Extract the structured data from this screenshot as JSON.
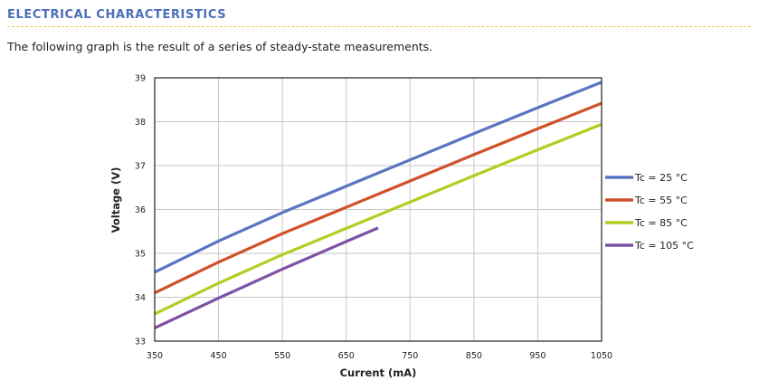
{
  "section": {
    "title": "ELECTRICAL CHARACTERISTICS",
    "intro": "The following graph is the result of a series of steady-state measurements."
  },
  "colors": {
    "title": "#4b6fb8",
    "rule": "#f0c64a",
    "grid": "#c8c8c8",
    "frame": "#222222"
  },
  "chart_data": {
    "type": "line",
    "xlabel": "Current (mA)",
    "ylabel": "Voltage (V)",
    "xlim": [
      350,
      1050
    ],
    "ylim": [
      33,
      39
    ],
    "xticks": [
      350,
      450,
      550,
      650,
      750,
      850,
      950,
      1050
    ],
    "yticks": [
      33,
      34,
      35,
      36,
      37,
      38,
      39
    ],
    "grid": true,
    "legend_position": "right",
    "series": [
      {
        "name": "Tc = 25 °C",
        "color": "#5b74c0",
        "points": [
          [
            350,
            34.57
          ],
          [
            450,
            35.28
          ],
          [
            550,
            35.93
          ],
          [
            650,
            36.53
          ],
          [
            750,
            37.13
          ],
          [
            850,
            37.73
          ],
          [
            950,
            38.32
          ],
          [
            1050,
            38.9
          ]
        ]
      },
      {
        "name": "Tc = 55 °C",
        "color": "#d0502a",
        "points": [
          [
            350,
            34.1
          ],
          [
            450,
            34.8
          ],
          [
            550,
            35.45
          ],
          [
            650,
            36.05
          ],
          [
            750,
            36.65
          ],
          [
            850,
            37.25
          ],
          [
            950,
            37.84
          ],
          [
            1050,
            38.42
          ]
        ]
      },
      {
        "name": "Tc = 85 °C",
        "color": "#b5cc22",
        "points": [
          [
            350,
            33.62
          ],
          [
            450,
            34.32
          ],
          [
            550,
            34.97
          ],
          [
            650,
            35.57
          ],
          [
            750,
            36.17
          ],
          [
            850,
            36.77
          ],
          [
            950,
            37.36
          ],
          [
            1050,
            37.94
          ]
        ]
      },
      {
        "name": "Tc = 105 °C",
        "color": "#7b52a3",
        "points": [
          [
            350,
            33.3
          ],
          [
            450,
            33.98
          ],
          [
            550,
            34.64
          ],
          [
            650,
            35.27
          ],
          [
            700,
            35.58
          ]
        ]
      }
    ]
  }
}
